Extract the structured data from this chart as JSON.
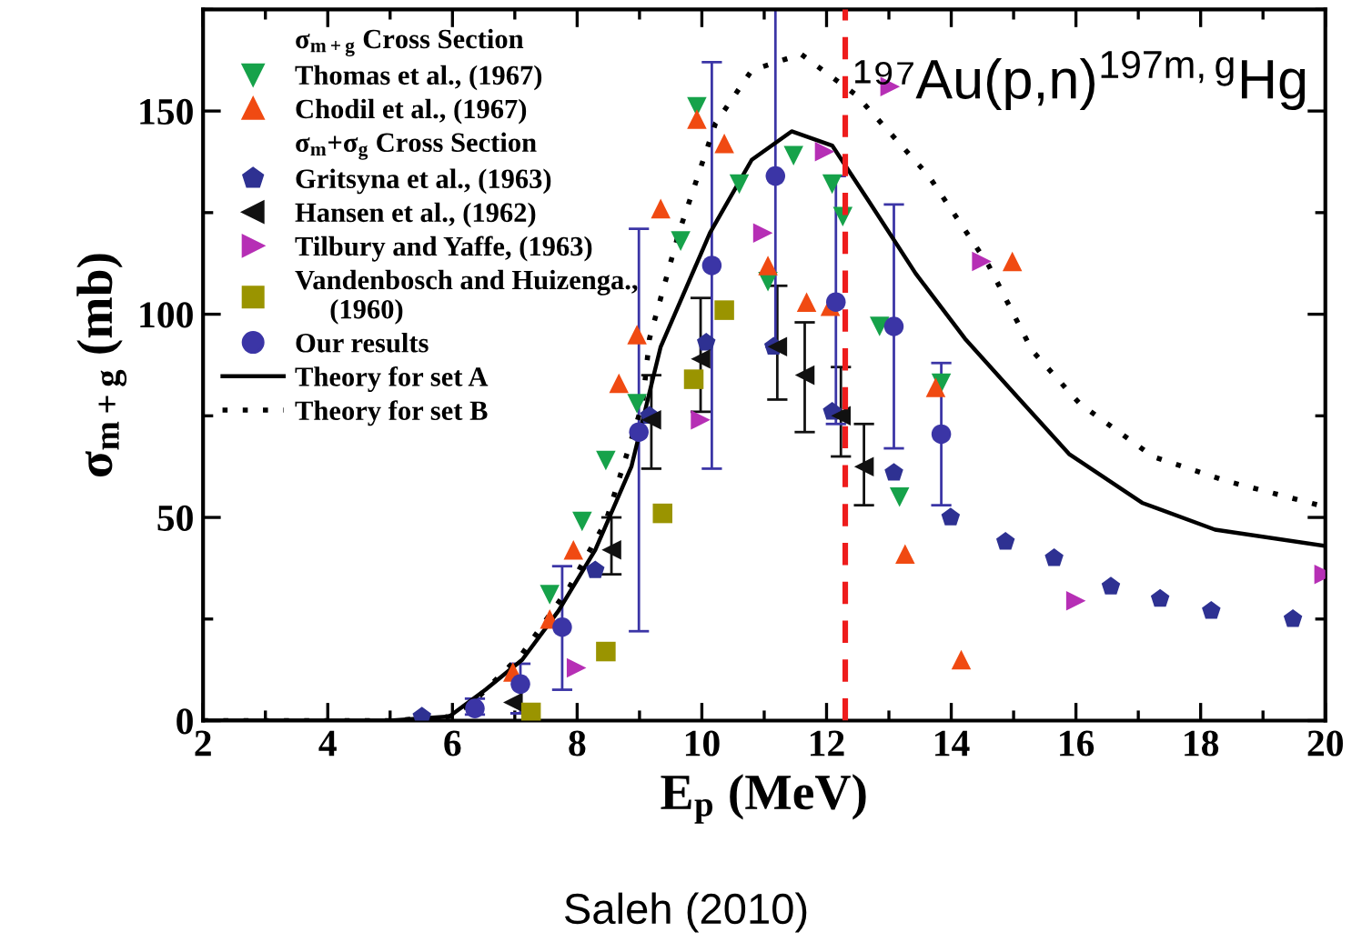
{
  "chart_data": {
    "type": "scatter",
    "title": "¹⁹⁷Au(p,n)$^{197m,g}$Hg",
    "xlabel": "E$_{p}$ (MeV)",
    "ylabel": "σ$_{m+g}$ (mb)",
    "annotations": [
      "σ$_{m+g}$ Cross Section",
      "σ$_{m}$+σ$_{g}$ Cross Section",
      "Saleh (2010)"
    ],
    "xlim": [
      2,
      20
    ],
    "ylim": [
      0,
      175
    ],
    "xticks": [
      2,
      4,
      6,
      8,
      10,
      12,
      14,
      16,
      18,
      20
    ],
    "yticks": [
      0,
      50,
      100,
      150
    ],
    "grid": false,
    "legend": "top left",
    "ref_lines": [
      {
        "axis": "x",
        "value": 12.3,
        "color": "#ee1c1c",
        "line_style": "dashed"
      }
    ],
    "series": [
      {
        "name": "Thomas et al., (1967)",
        "marker": "triangle-down",
        "color": "#16a24a",
        "x": [
          9.92,
          10.6,
          11.47,
          12.09,
          12.26,
          9.66,
          11.06,
          12.85,
          8.96,
          8.46,
          8.08,
          7.56,
          13.84,
          13.17
        ],
        "values": [
          151,
          132,
          139,
          132,
          124,
          118,
          108,
          97,
          78,
          64,
          49,
          31,
          83,
          55
        ]
      },
      {
        "name": "Chodil et al., (1967)",
        "marker": "triangle",
        "color": "#f04a12",
        "x": [
          9.92,
          10.36,
          9.34,
          8.96,
          11.06,
          11.68,
          12.06,
          14.98,
          8.67,
          7.94,
          7.56,
          6.97,
          13.75,
          13.26,
          14.16
        ],
        "values": [
          148,
          142,
          126,
          95,
          112,
          103,
          102,
          113,
          83,
          42,
          25,
          12,
          82,
          41,
          15
        ]
      },
      {
        "name": "Gritsyna et al., (1963)",
        "color": "#2e3192",
        "x": [
          5.51,
          8.29,
          9.16,
          10.07,
          11.15,
          12.09,
          13.08,
          13.99,
          14.87,
          15.65,
          16.56,
          17.35,
          18.17,
          19.48
        ],
        "values": [
          1,
          37,
          75,
          93,
          92,
          76,
          61,
          50,
          44,
          40,
          33,
          30,
          27,
          25
        ]
      },
      {
        "name": "Hansen et al., (1962)",
        "marker": "triangle-left",
        "color": "#111111",
        "x": [
          6.97,
          8.55,
          9.19,
          9.98,
          11.21,
          11.65,
          12.23,
          12.6
        ],
        "values": [
          4.5,
          42,
          74,
          89,
          92,
          85,
          75,
          62.5
        ],
        "errors": [
          null,
          [
            36,
            50
          ],
          [
            62,
            85
          ],
          [
            76,
            104
          ],
          [
            79,
            107
          ],
          [
            71,
            98
          ],
          [
            65,
            87
          ],
          [
            53,
            73
          ]
        ]
      },
      {
        "name": "Tilbury and Yaffe, (1963)",
        "marker": "triangle-right",
        "color": "#b62fb5",
        "x": [
          7.99,
          9.98,
          10.98,
          11.97,
          13.02,
          14.49,
          16.0,
          19.98
        ],
        "values": [
          13,
          74,
          120,
          140,
          156,
          113,
          29.5,
          36
        ]
      },
      {
        "name": "Vandenbosch and Huizenga.,\n     (1960)",
        "marker": "square",
        "color": "#9a9400",
        "x": [
          7.26,
          8.46,
          9.37,
          9.87,
          10.36
        ],
        "values": [
          2,
          17,
          51,
          84,
          101
        ]
      },
      {
        "name": "Our results",
        "marker": "circle",
        "color": "#3b35a6",
        "x": [
          6.36,
          7.09,
          7.76,
          8.99,
          10.16,
          11.18,
          12.15,
          13.08,
          13.84
        ],
        "values": [
          3,
          9,
          23,
          71,
          112,
          134,
          103,
          97,
          70.5
        ],
        "errors": [
          [
            1.5,
            5.4
          ],
          [
            1.8,
            14
          ],
          [
            7.6,
            38
          ],
          [
            22,
            121
          ],
          [
            62,
            162
          ],
          [
            92,
            175
          ],
          [
            73,
            134
          ],
          [
            67,
            127
          ],
          [
            53,
            88
          ]
        ]
      },
      {
        "name": "Theory for set A",
        "type": "line",
        "marker": "none",
        "line_style": "solid",
        "color": "#000000",
        "x": [
          2,
          5,
          5.95,
          6.53,
          7.12,
          7.7,
          8.29,
          8.87,
          9.34,
          10.13,
          10.8,
          11.44,
          12.09,
          12.67,
          13.43,
          14.22,
          15.1,
          15.89,
          17.06,
          18.23,
          19.98
        ],
        "values": [
          0,
          0,
          1,
          7.6,
          15,
          27,
          42,
          62.5,
          92,
          120,
          138,
          145,
          141.5,
          128,
          110,
          94,
          79,
          65.6,
          53.6,
          47,
          43
        ]
      },
      {
        "name": "Theory for set B",
        "type": "line",
        "marker": "none",
        "line_style": "dotted",
        "color": "#000000",
        "x": [
          2,
          5,
          5.95,
          6.33,
          7.12,
          7.88,
          8.46,
          9.05,
          9.16,
          9.63,
          10.22,
          10.8,
          11.59,
          12.47,
          13.64,
          14.6,
          15.3,
          16.06,
          17.23,
          18.4,
          19.9
        ],
        "values": [
          0,
          0,
          1,
          4.5,
          16.5,
          33,
          49,
          78,
          94,
          120,
          147,
          160,
          164,
          154,
          134,
          112,
          91,
          78,
          65,
          59,
          53
        ]
      }
    ]
  }
}
